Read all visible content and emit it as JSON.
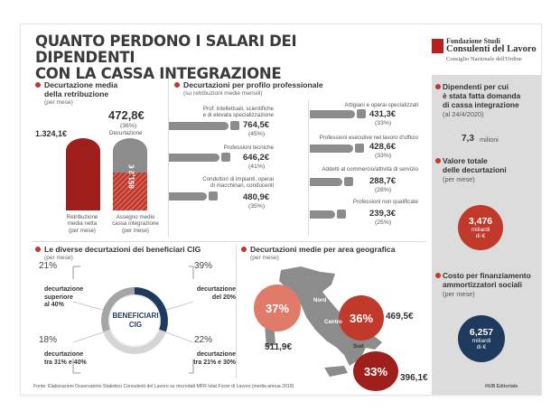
{
  "title_line1": "QUANTO PERDONO I SALARI DEI DIPENDENTI",
  "title_line2": "CON LA CASSA INTEGRAZIONE",
  "logo": {
    "line1": "Fondazione Studi",
    "line2": "Consulenti del Lavoro",
    "line3": "Consiglio Nazionale dell'Ordine"
  },
  "media": {
    "title_line1": "Decurtazione media",
    "title_line2": "della retribuzione",
    "sub": "(per mese)",
    "decurtazione_value": "472,8€",
    "decurtazione_pct": "(36%)",
    "decurtazione_label": "Decurtazione",
    "netta_value": "1.324,1€",
    "assegno_value": "851,2 €",
    "label_netta": [
      "Retribuzione",
      "media netta",
      "(per mese)"
    ],
    "label_assegno": [
      "Assegno medio",
      "cassa integrazione",
      "(per mese)"
    ]
  },
  "profili": {
    "title": "Decurtazioni per profilo professionale",
    "sub": "(su retribuzioni medie mensili)",
    "items": [
      {
        "label": [
          "Prof. intellettuali, scientifiche",
          "e di elevata specializzazione"
        ],
        "value": "764,5€",
        "pct": "(45%)"
      },
      {
        "label": [
          "Professioni tecniche"
        ],
        "value": "646,2€",
        "pct": "(41%)"
      },
      {
        "label": [
          "Conduttori di impianti, operai",
          "di macchinari, conducenti"
        ],
        "value": "480,9€",
        "pct": "(35%)"
      },
      {
        "label": [
          "Artigiani e operai specializzati"
        ],
        "value": "431,3€",
        "pct": "(33%)"
      },
      {
        "label": [
          "Professioni esecutive nel lavoro d'ufficio"
        ],
        "value": "428,6€",
        "pct": "(33%)"
      },
      {
        "label": [
          "Addetti al commercio/attività di servizio"
        ],
        "value": "288,7€",
        "pct": "(28%)"
      },
      {
        "label": [
          "Professioni non qualificate"
        ],
        "value": "239,3€",
        "pct": "(25%)"
      }
    ]
  },
  "beneficiari": {
    "title": "Le diverse decurtazioni dei beneficiari CIG",
    "sub": "(per mese)",
    "center_line1": "BENEFICIARI",
    "center_line2": "CIG",
    "segments": [
      {
        "pct": "21%",
        "label": [
          "decurtazione",
          "superiore",
          "al 40%"
        ],
        "fraction": 0.21
      },
      {
        "pct": "39%",
        "label": [
          "decurtazione",
          "del 20%"
        ],
        "fraction": 0.39
      },
      {
        "pct": "18%",
        "label": [
          "decurtazione",
          "tra 31% e 40%"
        ],
        "fraction": 0.18
      },
      {
        "pct": "22%",
        "label": [
          "decurtazione",
          "tra 21% e 30%"
        ],
        "fraction": 0.22
      }
    ]
  },
  "aree": {
    "title": "Decurtazioni medie per area geografica",
    "sub": "(per mese)",
    "nord": {
      "label": "Nord",
      "pct": "37%",
      "value": "511,9€"
    },
    "centro": {
      "label": "Centro",
      "pct": "36%",
      "value": "469,5€"
    },
    "sud": {
      "label": "Sud",
      "pct": "33%",
      "value": "396,1€"
    }
  },
  "panel": {
    "dipendenti_title": [
      "Dipendenti per cui",
      "è stata fatta domanda",
      "di cassa integrazione"
    ],
    "dipendenti_sub": "(al 24/4/2020)",
    "dipendenti_value": "7,3",
    "dipendenti_unit": "milioni",
    "valore_title": [
      "Valore totale",
      "delle decurtazioni"
    ],
    "valore_sub": "(per mese)",
    "valore_value": "3,476",
    "valore_unit1": "miliardi",
    "valore_unit2": "di €",
    "costo_title": [
      "Costo per finanziamento",
      "ammortizzatori sociali"
    ],
    "costo_sub": "(per mese)",
    "costo_value": "6,257",
    "costo_unit1": "miliardi",
    "costo_unit2": "di €"
  },
  "footer": {
    "source": "Fonte: Elaborazioni Osservatorio Statistico Consulenti del Lavoro su microdati MFR Istat Forze di Lavoro (media annua 2019)",
    "credit": "HUB Editoriale"
  },
  "colors": {
    "red": "#c0392b",
    "darkred": "#9e1f1c",
    "salmon": "#e07b6a",
    "gray": "#8c8c8c",
    "navy": "#1f3a5f"
  }
}
